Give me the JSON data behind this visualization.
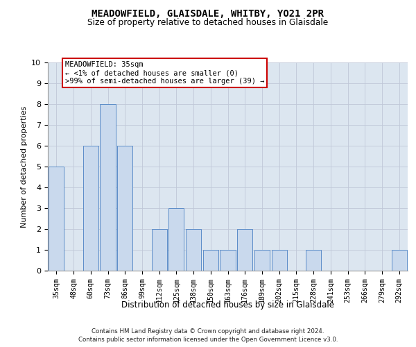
{
  "title": "MEADOWFIELD, GLAISDALE, WHITBY, YO21 2PR",
  "subtitle": "Size of property relative to detached houses in Glaisdale",
  "xlabel": "Distribution of detached houses by size in Glaisdale",
  "ylabel": "Number of detached properties",
  "categories": [
    "35sqm",
    "48sqm",
    "60sqm",
    "73sqm",
    "86sqm",
    "99sqm",
    "112sqm",
    "125sqm",
    "138sqm",
    "150sqm",
    "163sqm",
    "176sqm",
    "189sqm",
    "202sqm",
    "215sqm",
    "228sqm",
    "241sqm",
    "253sqm",
    "266sqm",
    "279sqm",
    "292sqm"
  ],
  "values": [
    5,
    0,
    6,
    8,
    6,
    0,
    2,
    3,
    2,
    1,
    1,
    2,
    1,
    1,
    0,
    1,
    0,
    0,
    0,
    0,
    1
  ],
  "bar_color": "#c9d9ed",
  "bar_edge_color": "#5b8cc8",
  "annotation_text": "MEADOWFIELD: 35sqm\n← <1% of detached houses are smaller (0)\n>99% of semi-detached houses are larger (39) →",
  "annotation_box_color": "#ffffff",
  "annotation_box_edge_color": "#cc0000",
  "ylim": [
    0,
    10
  ],
  "yticks": [
    0,
    1,
    2,
    3,
    4,
    5,
    6,
    7,
    8,
    9,
    10
  ],
  "grid_color": "#c0c8d8",
  "background_color": "#dce6f0",
  "footer_line1": "Contains HM Land Registry data © Crown copyright and database right 2024.",
  "footer_line2": "Contains public sector information licensed under the Open Government Licence v3.0."
}
